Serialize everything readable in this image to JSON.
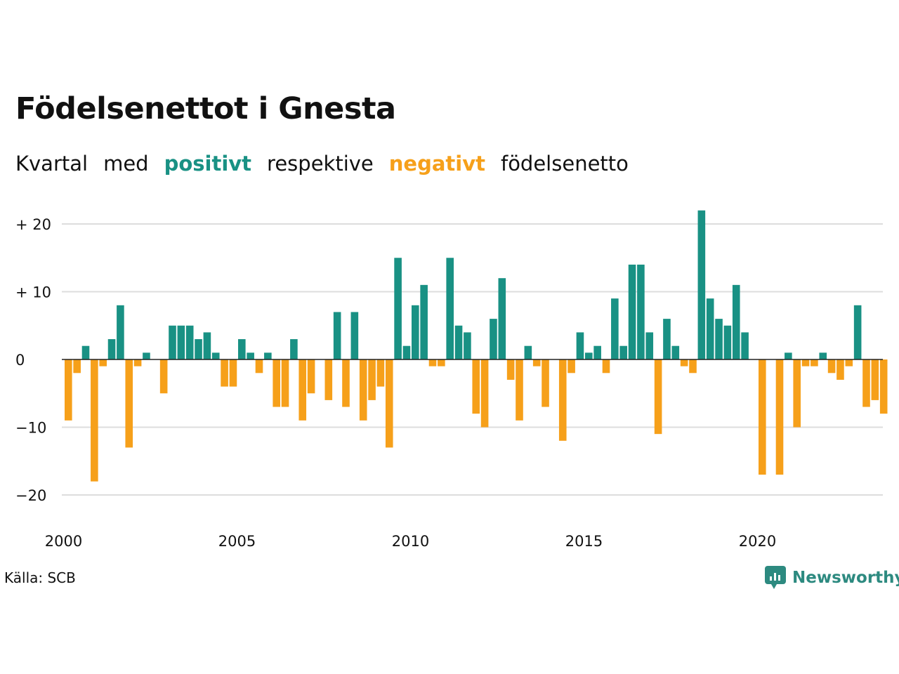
{
  "title": "Födelsenettot i Gnesta",
  "subtitle": {
    "part1": "Kvartal",
    "part2": "med",
    "positive": "positivt",
    "part3": "respektive",
    "negative": "negativt",
    "part4": "födelsenetto"
  },
  "source": "Källa: SCB",
  "brand": {
    "name": "Newsworthy",
    "icon": "newsworthy-logo-icon"
  },
  "colors": {
    "positive": "#199184",
    "negative": "#f6a01a",
    "grid": "#dddddd",
    "zero": "#222222"
  },
  "chart_data": {
    "type": "bar",
    "title": "Födelsenettot i Gnesta",
    "ylim": [
      -24,
      23
    ],
    "yticks": [
      20,
      10,
      0,
      -10,
      -20
    ],
    "ytick_labels": [
      "+ 20",
      "+ 10",
      "0",
      "−10",
      "−20"
    ],
    "x_start": {
      "year": 2000,
      "quarter": 1
    },
    "xticks": [
      2000,
      2005,
      2010,
      2015,
      2020
    ],
    "xtick_labels": [
      "2000",
      "2005",
      "2010",
      "2015",
      "2020"
    ],
    "grid": true,
    "values": [
      -9,
      -2,
      2,
      -18,
      -1,
      3,
      8,
      -13,
      -1,
      1,
      0,
      -5,
      5,
      5,
      5,
      3,
      4,
      1,
      -4,
      -4,
      3,
      1,
      -2,
      1,
      -7,
      -7,
      3,
      -9,
      -5,
      0,
      -6,
      7,
      -7,
      7,
      -9,
      -6,
      -4,
      -13,
      15,
      2,
      8,
      11,
      -1,
      -1,
      15,
      5,
      4,
      -8,
      -10,
      6,
      12,
      -3,
      -9,
      2,
      -1,
      -7,
      0,
      -12,
      -2,
      4,
      1,
      2,
      -2,
      9,
      2,
      14,
      14,
      4,
      -11,
      6,
      2,
      -1,
      -2,
      22,
      9,
      6,
      5,
      11,
      4,
      0,
      -17,
      0,
      -17,
      1,
      -10,
      -1,
      -1,
      1,
      -2,
      -3,
      -1,
      8,
      -7,
      -6,
      -8
    ]
  }
}
